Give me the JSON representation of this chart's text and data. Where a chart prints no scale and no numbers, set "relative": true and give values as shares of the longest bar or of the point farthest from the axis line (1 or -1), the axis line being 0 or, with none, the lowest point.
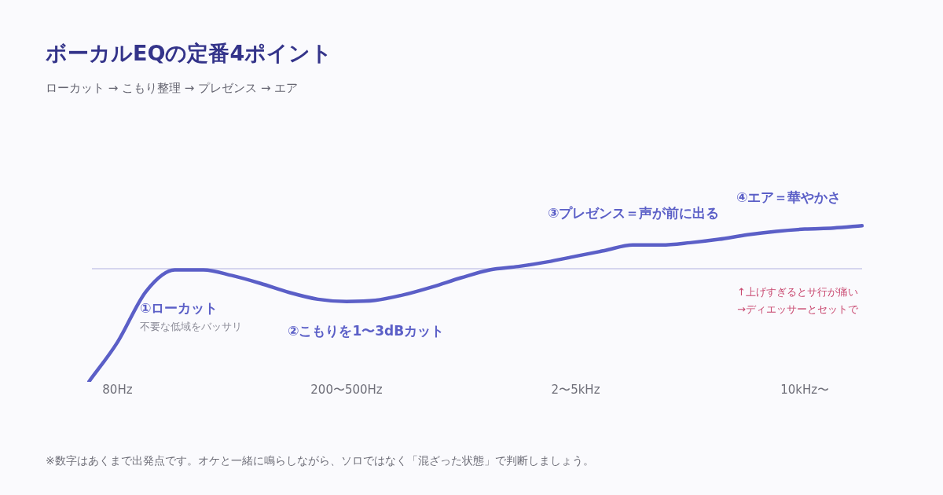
{
  "chart_data": {
    "type": "line",
    "title": "ボーカルEQの定番4ポイント",
    "subtitle": "ローカット → こもり整理 → プレゼンス → エア",
    "categories": [
      null,
      "80Hz",
      null,
      null,
      null,
      null,
      null,
      null,
      null,
      "200〜500Hz",
      null,
      null,
      null,
      null,
      null,
      null,
      null,
      "2〜5kHz",
      null,
      null,
      null,
      null,
      null,
      null,
      null,
      "10kHz〜",
      null,
      null
    ],
    "series": [
      {
        "color": "#5b5fc7",
        "values": [
          -1.0,
          -0.65,
          -0.2,
          -0.01,
          -0.01,
          -0.06,
          -0.13,
          -0.21,
          -0.27,
          -0.29,
          -0.28,
          -0.23,
          -0.16,
          -0.08,
          -0.01,
          0.02,
          0.06,
          0.11,
          0.16,
          0.21,
          0.21,
          0.23,
          0.26,
          0.3,
          0.33,
          0.35,
          0.36,
          0.38
        ]
      }
    ],
    "relative": true,
    "marker": "none",
    "line_style": "solid",
    "legend": false,
    "grid": false,
    "ref_lines": [
      {
        "axis": "y",
        "value": 0,
        "color": "#c9c9e8"
      }
    ],
    "annotations": [
      "①ローカット",
      "不要な低域をバッサリ",
      "②こもりを1〜3dBカット",
      "③プレゼンス＝声が前に出る",
      "④エア＝華やかさ",
      "↑上げすぎるとサ行が痛い",
      "→ディエッサーとセットで",
      "※数字はあくまで出発点です。オケと一緒に鳴らしながら、ソロではなく「混ざった状態」で判断しましょう。"
    ]
  }
}
